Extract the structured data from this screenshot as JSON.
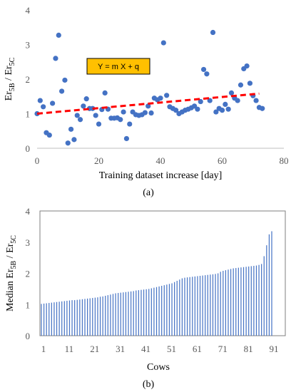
{
  "chart_data": [
    {
      "type": "scatter",
      "caption": "(a)",
      "xlabel": "Training dataset increase  [day]",
      "ylabel": "Er5B / Er5C",
      "ylabel_main": "Er",
      "ylabel_sub1": "5B",
      "ylabel_sep": " / Er",
      "ylabel_sub2": "5C",
      "xlim": [
        0,
        80
      ],
      "ylim": [
        0,
        4
      ],
      "xticks": [
        "0",
        "20",
        "40",
        "60",
        "80"
      ],
      "yticks": [
        "0",
        "1",
        "2",
        "3",
        "4"
      ],
      "grid": false,
      "marker_color": "#4472C4",
      "trend": {
        "label": "Y = m X + q",
        "x": [
          0,
          72
        ],
        "y": [
          1.0,
          1.58
        ],
        "color": "#FF0000",
        "style": "dashed"
      },
      "annotation_box_color": "#FFC000",
      "points": [
        [
          0,
          1.0
        ],
        [
          1,
          1.38
        ],
        [
          2,
          1.2
        ],
        [
          3,
          0.45
        ],
        [
          4,
          0.38
        ],
        [
          5,
          1.3
        ],
        [
          6,
          2.6
        ],
        [
          7,
          3.27
        ],
        [
          8,
          1.65
        ],
        [
          9,
          1.97
        ],
        [
          10,
          0.15
        ],
        [
          11,
          0.55
        ],
        [
          12,
          0.25
        ],
        [
          13,
          0.95
        ],
        [
          14,
          0.83
        ],
        [
          15,
          1.22
        ],
        [
          16,
          1.43
        ],
        [
          17,
          1.15
        ],
        [
          18,
          1.15
        ],
        [
          19,
          0.95
        ],
        [
          20,
          0.7
        ],
        [
          21,
          1.12
        ],
        [
          22,
          1.6
        ],
        [
          23,
          1.13
        ],
        [
          24,
          0.87
        ],
        [
          25,
          0.87
        ],
        [
          26,
          0.88
        ],
        [
          27,
          0.83
        ],
        [
          28,
          1.05
        ],
        [
          29,
          0.28
        ],
        [
          30,
          0.7
        ],
        [
          31,
          1.05
        ],
        [
          32,
          0.97
        ],
        [
          33,
          0.95
        ],
        [
          34,
          0.97
        ],
        [
          35,
          1.03
        ],
        [
          36,
          1.22
        ],
        [
          37,
          1.02
        ],
        [
          38,
          1.45
        ],
        [
          39,
          1.4
        ],
        [
          40,
          1.45
        ],
        [
          41,
          3.05
        ],
        [
          42,
          1.53
        ],
        [
          43,
          1.2
        ],
        [
          44,
          1.15
        ],
        [
          45,
          1.1
        ],
        [
          46,
          1.0
        ],
        [
          47,
          1.05
        ],
        [
          48,
          1.1
        ],
        [
          49,
          1.13
        ],
        [
          50,
          1.17
        ],
        [
          51,
          1.22
        ],
        [
          52,
          1.13
        ],
        [
          53,
          1.35
        ],
        [
          54,
          2.28
        ],
        [
          55,
          2.15
        ],
        [
          56,
          1.38
        ],
        [
          57,
          3.35
        ],
        [
          58,
          1.05
        ],
        [
          59,
          1.15
        ],
        [
          60,
          1.1
        ],
        [
          61,
          1.27
        ],
        [
          62,
          1.13
        ],
        [
          63,
          1.6
        ],
        [
          64,
          1.45
        ],
        [
          65,
          1.38
        ],
        [
          66,
          1.83
        ],
        [
          67,
          2.3
        ],
        [
          68,
          2.38
        ],
        [
          69,
          1.88
        ],
        [
          70,
          1.52
        ],
        [
          71,
          1.38
        ],
        [
          72,
          1.18
        ],
        [
          73,
          1.15
        ]
      ]
    },
    {
      "type": "bar",
      "caption": "(b)",
      "xlabel": "Cows",
      "ylabel": "Median Er5B / Er5C",
      "ylabel_main": "Median Er",
      "ylabel_sub1": "5B",
      "ylabel_sep": " / Er",
      "ylabel_sub2": "5C",
      "ylim": [
        0,
        4
      ],
      "yticks": [
        "0",
        "1",
        "2",
        "3",
        "4"
      ],
      "xticks": [
        "1",
        "11",
        "21",
        "31",
        "41",
        "51",
        "61",
        "71",
        "81",
        "91"
      ],
      "bar_color": "#4472C4",
      "grid": false,
      "categories_count": 91,
      "values": [
        1.02,
        1.03,
        1.04,
        1.05,
        1.06,
        1.07,
        1.08,
        1.09,
        1.1,
        1.11,
        1.12,
        1.13,
        1.14,
        1.14,
        1.15,
        1.16,
        1.17,
        1.18,
        1.19,
        1.2,
        1.21,
        1.22,
        1.23,
        1.25,
        1.26,
        1.28,
        1.3,
        1.32,
        1.34,
        1.36,
        1.37,
        1.38,
        1.39,
        1.4,
        1.41,
        1.42,
        1.43,
        1.45,
        1.46,
        1.47,
        1.48,
        1.49,
        1.5,
        1.52,
        1.54,
        1.56,
        1.58,
        1.6,
        1.62,
        1.64,
        1.66,
        1.68,
        1.72,
        1.76,
        1.8,
        1.84,
        1.86,
        1.87,
        1.88,
        1.89,
        1.9,
        1.91,
        1.92,
        1.93,
        1.94,
        1.95,
        1.96,
        1.97,
        1.98,
        2.0,
        2.05,
        2.08,
        2.1,
        2.12,
        2.14,
        2.16,
        2.17,
        2.18,
        2.19,
        2.2,
        2.21,
        2.22,
        2.23,
        2.24,
        2.25,
        2.27,
        2.3,
        2.55,
        2.9,
        3.25,
        3.35
      ]
    }
  ]
}
